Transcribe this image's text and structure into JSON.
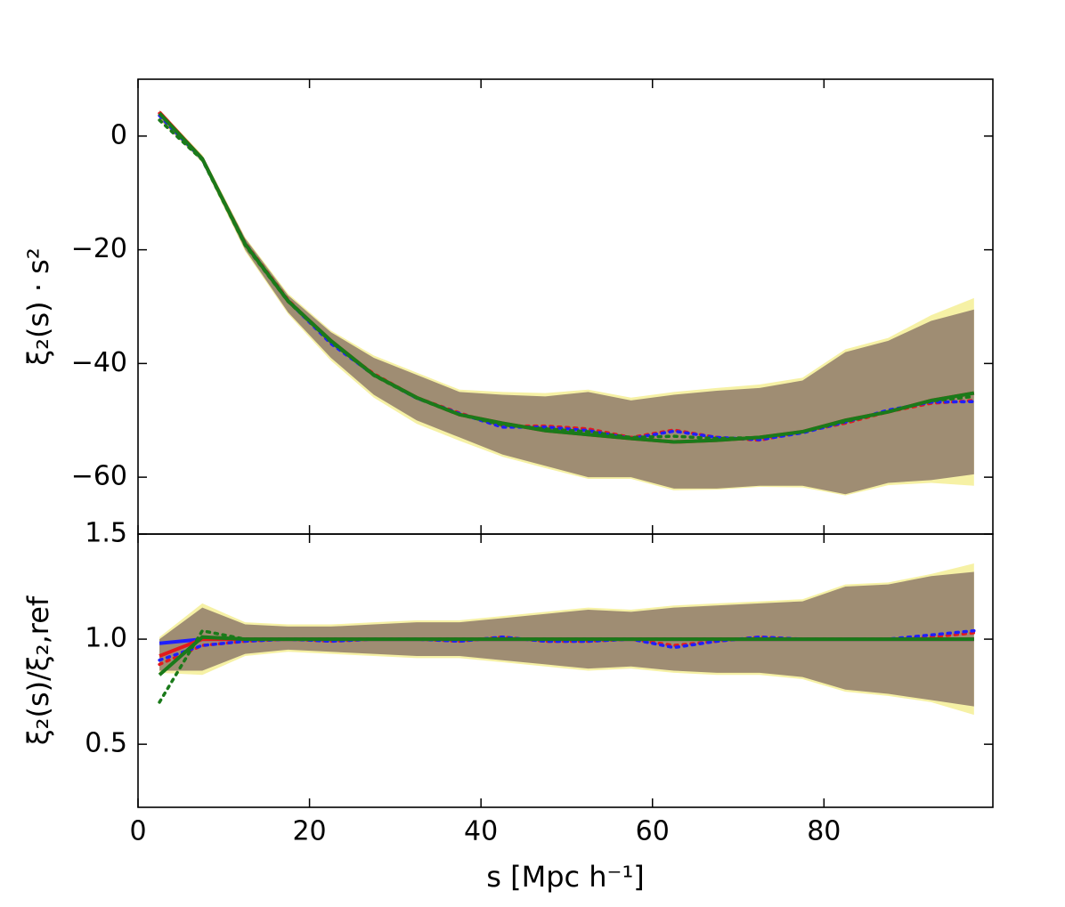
{
  "chart_data": [
    {
      "type": "line",
      "ylabel": "ξ₂(s) · s²",
      "x": [
        2.5,
        7.5,
        12.5,
        17.5,
        22.5,
        27.5,
        32.5,
        37.5,
        42.5,
        47.5,
        52.5,
        57.5,
        62.5,
        67.5,
        72.5,
        77.5,
        82.5,
        87.5,
        92.5,
        97.5
      ],
      "xlim": [
        0,
        99.7
      ],
      "ylim": [
        -70,
        10
      ],
      "xticks": [
        0,
        20,
        40,
        60,
        80
      ],
      "xtick_labels": false,
      "yticks": [
        0,
        {
          "value": -20,
          "label": "−20"
        },
        {
          "value": -40,
          "label": "−40"
        },
        {
          "value": -60,
          "label": "−60"
        }
      ],
      "bands": [
        {
          "color": "#f5f0a0",
          "lower": [
            2.8,
            -4.7,
            -20.3,
            -31.3,
            -39.5,
            -46,
            -50.6,
            -53.6,
            -56.4,
            -58.4,
            -60.3,
            -60.3,
            -62.3,
            -62.2,
            -61.7,
            -61.8,
            -63.2,
            -61.4,
            -61,
            -61.5
          ],
          "upper": [
            4.6,
            -3.3,
            -17.8,
            -27.7,
            -34.2,
            -38.6,
            -41.6,
            -44.6,
            -45,
            -45.2,
            -44.6,
            -46,
            -45,
            -44.3,
            -43.7,
            -42.5,
            -37.5,
            -35.5,
            -31.5,
            -28.5
          ]
        },
        {
          "color": "#9a8770",
          "lower": [
            3,
            -4.5,
            -20,
            -31,
            -39,
            -45.5,
            -50,
            -53,
            -56,
            -58,
            -60,
            -60,
            -62,
            -62,
            -61.5,
            -61.5,
            -63,
            -61,
            -60.5,
            -59.5
          ],
          "upper": [
            4.5,
            -3.5,
            -18,
            -28,
            -34.5,
            -39,
            -42,
            -45,
            -45.5,
            -45.8,
            -45,
            -46.5,
            -45.5,
            -44.8,
            -44.3,
            -43,
            -38,
            -36,
            -32.5,
            -30.5
          ]
        }
      ],
      "series": [
        {
          "color": "#e41a1c",
          "dashed": false,
          "values": [
            4.2,
            -4,
            -19,
            -29,
            -36,
            -42,
            -46,
            -49,
            -50.5,
            -51.8,
            -52.5,
            -53.2,
            -53.8,
            -53.5,
            -53,
            -52,
            -50,
            -48.5,
            -46.5,
            -45.2
          ]
        },
        {
          "color": "#e41a1c",
          "dashed": true,
          "values": [
            4,
            -4,
            -18.8,
            -28.8,
            -36.3,
            -41.8,
            -46,
            -48.7,
            -51,
            -51,
            -51.5,
            -53,
            -51.7,
            -53,
            -53.5,
            -52,
            -50.5,
            -48.5,
            -47,
            -46.5
          ]
        },
        {
          "color": "#1f1fff",
          "dashed": true,
          "values": [
            3.6,
            -4.1,
            -18.9,
            -29,
            -36.5,
            -42,
            -46.1,
            -48.8,
            -51.2,
            -51.2,
            -51.8,
            -53.2,
            -51.9,
            -53,
            -53.4,
            -52.2,
            -50.3,
            -48.2,
            -46.8,
            -46.7
          ]
        },
        {
          "color": "#1a7a1a",
          "dashed": true,
          "values": [
            2.8,
            -4.2,
            -19.2,
            -29.1,
            -36.2,
            -42.1,
            -46.1,
            -49,
            -50.8,
            -51.5,
            -52,
            -53,
            -52.8,
            -53.2,
            -53,
            -52,
            -50.2,
            -48.5,
            -46.6,
            -45.8
          ]
        },
        {
          "color": "#1a7a1a",
          "dashed": false,
          "values": [
            4,
            -4,
            -19,
            -29,
            -36,
            -42,
            -46,
            -49,
            -50.5,
            -51.8,
            -52.5,
            -53.2,
            -53.8,
            -53.5,
            -53,
            -52,
            -50,
            -48.5,
            -46.5,
            -45.2
          ]
        }
      ]
    },
    {
      "type": "line",
      "ylabel": "ξ₂(s)/ξ₂,ref",
      "xlabel": "s [Mpc h⁻¹]",
      "x": [
        2.5,
        7.5,
        12.5,
        17.5,
        22.5,
        27.5,
        32.5,
        37.5,
        42.5,
        47.5,
        52.5,
        57.5,
        62.5,
        67.5,
        72.5,
        77.5,
        82.5,
        87.5,
        92.5,
        97.5
      ],
      "xlim": [
        0,
        99.7
      ],
      "ylim": [
        0.2,
        1.5
      ],
      "xticks": [
        0,
        20,
        40,
        60,
        80
      ],
      "xtick_labels": true,
      "yticks": [
        0.5,
        {
          "value": 1,
          "label": "1.0"
        },
        1.5
      ],
      "bands": [
        {
          "color": "#f5f0a0",
          "lower": [
            0.84,
            0.83,
            0.92,
            0.94,
            0.93,
            0.92,
            0.91,
            0.91,
            0.89,
            0.87,
            0.85,
            0.86,
            0.84,
            0.83,
            0.83,
            0.81,
            0.75,
            0.73,
            0.7,
            0.64
          ],
          "upper": [
            1.01,
            1.17,
            1.08,
            1.07,
            1.07,
            1.08,
            1.09,
            1.09,
            1.11,
            1.13,
            1.15,
            1.14,
            1.16,
            1.17,
            1.18,
            1.19,
            1.26,
            1.27,
            1.31,
            1.36
          ]
        },
        {
          "color": "#9a8770",
          "lower": [
            0.85,
            0.85,
            0.93,
            0.95,
            0.94,
            0.93,
            0.92,
            0.92,
            0.9,
            0.88,
            0.86,
            0.87,
            0.85,
            0.84,
            0.84,
            0.82,
            0.76,
            0.74,
            0.71,
            0.68
          ],
          "upper": [
            1,
            1.15,
            1.07,
            1.06,
            1.06,
            1.07,
            1.08,
            1.08,
            1.1,
            1.12,
            1.14,
            1.13,
            1.15,
            1.16,
            1.17,
            1.18,
            1.25,
            1.26,
            1.3,
            1.32
          ]
        }
      ],
      "series": [
        {
          "color": "#1f1fff",
          "dashed": false,
          "values": [
            0.98,
            1,
            1,
            1,
            1,
            1,
            1,
            1,
            1,
            1,
            1,
            1,
            1,
            1,
            1,
            1,
            1,
            1,
            1,
            1
          ]
        },
        {
          "color": "#e41a1c",
          "dashed": false,
          "values": [
            0.92,
            1,
            1,
            1,
            1,
            1,
            1,
            1,
            1,
            1,
            1,
            1,
            1,
            1,
            1,
            1,
            1,
            1,
            1,
            1
          ]
        },
        {
          "color": "#e41a1c",
          "dashed": true,
          "values": [
            0.88,
            0.97,
            0.99,
            1,
            0.99,
            1,
            1,
            0.99,
            1.01,
            0.99,
            0.99,
            1,
            0.97,
            0.99,
            1.01,
            1,
            1,
            1,
            1.01,
            1.03
          ]
        },
        {
          "color": "#1f1fff",
          "dashed": true,
          "values": [
            0.9,
            0.97,
            0.99,
            1,
            0.99,
            1,
            1,
            0.99,
            1.01,
            0.99,
            0.99,
            1,
            0.96,
            0.99,
            1.01,
            1,
            1,
            1,
            1.02,
            1.04
          ]
        },
        {
          "color": "#1a7a1a",
          "dashed": true,
          "values": [
            0.7,
            1.04,
            1,
            1,
            1,
            1,
            1,
            1,
            1,
            1,
            1,
            1,
            1,
            1,
            1,
            1,
            1,
            1,
            1,
            1
          ]
        },
        {
          "color": "#1a7a1a",
          "dashed": false,
          "values": [
            0.83,
            1.01,
            1,
            1,
            1,
            1,
            1,
            1,
            1,
            1,
            1,
            1,
            1,
            1,
            1,
            1,
            1,
            1,
            1,
            1
          ]
        }
      ]
    }
  ]
}
